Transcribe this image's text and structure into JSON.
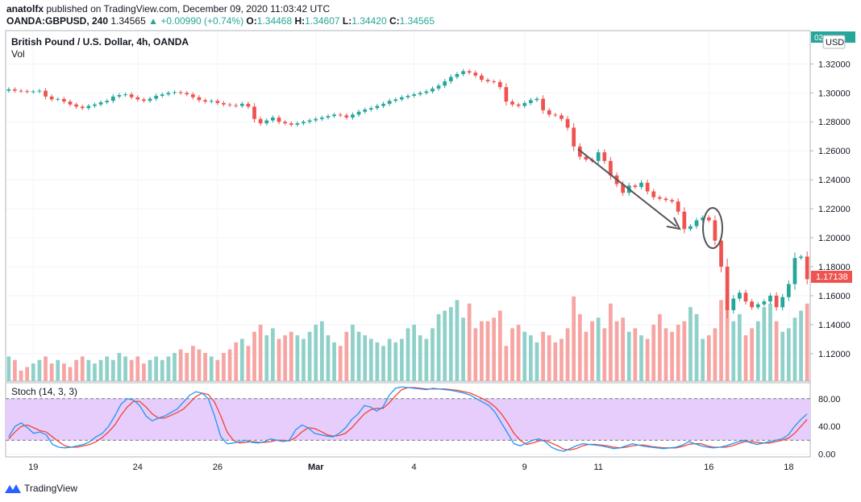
{
  "header": {
    "author": "anatolfx",
    "published_text": "published on TradingView.com, December 09, 2020 11:03:42 UTC",
    "symbol": "OANDA:GBPUSD, 240",
    "last": "1.34565",
    "change": "▲ +0.00990 (+0.74%)",
    "o_label": "O:",
    "o_value": "1.34468",
    "h_label": "H:",
    "h_value": "1.34607",
    "l_label": "L:",
    "l_value": "1.34420",
    "c_label": "C:",
    "c_value": "1.34565"
  },
  "chart": {
    "title": "British Pound / U.S. Dollar, 4h, OANDA",
    "volume_label": "Vol",
    "currency_button": "USD",
    "corner_tag": "02",
    "price_tag": "1.17138",
    "oscillator_label": "Stoch (14, 3, 3)"
  },
  "footer": {
    "brand": "TradingView"
  },
  "colors": {
    "up": "#26a69a",
    "down": "#ef5350",
    "up_volume": "#8fd1c9",
    "down_volume": "#f6a5a3",
    "stoch_k": "#2196f3",
    "stoch_d": "#f44336",
    "stoch_band": "#e6cdfb"
  },
  "chart_data": [
    {
      "type": "candlestick",
      "title": "British Pound / U.S. Dollar, 4h, OANDA",
      "price_axis_ticks": [
        "1.32000",
        "1.30000",
        "1.28000",
        "1.26000",
        "1.24000",
        "1.22000",
        "1.20000",
        "1.18000",
        "1.16000",
        "1.14000",
        "1.12000"
      ],
      "ylim": [
        1.101,
        1.343
      ],
      "x_ticks": [
        "19",
        "24",
        "26",
        "Mar",
        "4",
        "9",
        "11",
        "16",
        "18"
      ],
      "last_price": "1.17138",
      "annotations": [
        "down arrow",
        "ellipse"
      ],
      "close": [
        1.3025,
        1.3015,
        1.3012,
        1.3008,
        1.301,
        1.3015,
        1.2975,
        1.2955,
        1.2958,
        1.294,
        1.292,
        1.2905,
        1.2895,
        1.291,
        1.292,
        1.2935,
        1.2945,
        1.2975,
        1.2985,
        1.299,
        1.297,
        1.2955,
        1.2945,
        1.296,
        1.298,
        1.299,
        1.3,
        1.3005,
        1.3,
        1.299,
        1.297,
        1.295,
        1.294,
        1.2945,
        1.293,
        1.292,
        1.2915,
        1.291,
        1.2925,
        1.2905,
        1.282,
        1.279,
        1.281,
        1.283,
        1.28,
        1.279,
        1.278,
        1.279,
        1.28,
        1.281,
        1.282,
        1.283,
        1.284,
        1.285,
        1.2845,
        1.283,
        1.285,
        1.287,
        1.2885,
        1.2895,
        1.291,
        1.2925,
        1.2945,
        1.2955,
        1.297,
        1.298,
        1.299,
        1.3,
        1.301,
        1.303,
        1.305,
        1.308,
        1.311,
        1.313,
        1.315,
        1.314,
        1.312,
        1.309,
        1.308,
        1.3075,
        1.304,
        1.294,
        1.292,
        1.291,
        1.293,
        1.295,
        1.296,
        1.288,
        1.285,
        1.2845,
        1.282,
        1.276,
        1.263,
        1.256,
        1.254,
        1.253,
        1.259,
        1.253,
        1.243,
        1.237,
        1.231,
        1.236,
        1.235,
        1.238,
        1.232,
        1.228,
        1.227,
        1.226,
        1.225,
        1.218,
        1.206,
        1.208,
        1.212,
        1.214,
        1.212,
        1.198,
        1.18,
        1.15,
        1.158,
        1.162,
        1.156,
        1.152,
        1.154,
        1.156,
        1.16,
        1.152,
        1.159,
        1.168,
        1.186,
        1.187,
        1.1714
      ],
      "volume_relative": [
        0.35,
        0.3,
        0.15,
        0.2,
        0.25,
        0.3,
        0.35,
        0.25,
        0.3,
        0.25,
        0.2,
        0.3,
        0.35,
        0.3,
        0.25,
        0.3,
        0.35,
        0.3,
        0.4,
        0.35,
        0.3,
        0.35,
        0.25,
        0.3,
        0.35,
        0.3,
        0.35,
        0.4,
        0.45,
        0.4,
        0.5,
        0.45,
        0.4,
        0.35,
        0.3,
        0.4,
        0.45,
        0.55,
        0.6,
        0.5,
        0.7,
        0.8,
        0.65,
        0.75,
        0.6,
        0.65,
        0.7,
        0.65,
        0.6,
        0.7,
        0.8,
        0.85,
        0.65,
        0.55,
        0.5,
        0.7,
        0.8,
        0.7,
        0.65,
        0.6,
        0.55,
        0.5,
        0.6,
        0.55,
        0.6,
        0.75,
        0.8,
        0.65,
        0.6,
        0.75,
        0.95,
        1.0,
        1.05,
        1.15,
        0.9,
        1.1,
        0.75,
        0.85,
        0.85,
        0.9,
        1.0,
        0.5,
        0.75,
        0.8,
        0.7,
        0.65,
        0.55,
        0.7,
        0.65,
        0.55,
        0.6,
        0.75,
        1.2,
        0.95,
        0.7,
        0.85,
        0.9,
        0.75,
        1.1,
        0.85,
        0.9,
        0.7,
        0.75,
        0.65,
        0.6,
        0.8,
        0.95,
        0.75,
        0.7,
        0.8,
        0.85,
        1.05,
        0.95,
        0.6,
        0.65,
        0.75,
        1.15,
        1.2,
        0.85,
        0.95,
        0.65,
        0.75,
        0.85,
        1.05,
        1.1,
        0.85,
        0.7,
        0.75,
        0.9,
        1.0,
        1.1
      ]
    },
    {
      "type": "line",
      "title": "Stoch (14, 3, 3)",
      "y_axis_ticks": [
        "80.00",
        "40.00",
        "0.00"
      ],
      "ylim": [
        -4,
        103
      ],
      "band": [
        20,
        80
      ],
      "series": [
        {
          "name": "%K",
          "values": [
            25,
            40,
            45,
            38,
            30,
            32,
            28,
            14,
            10,
            9,
            10,
            12,
            14,
            18,
            25,
            30,
            40,
            55,
            72,
            80,
            78,
            70,
            55,
            48,
            52,
            55,
            60,
            65,
            75,
            85,
            90,
            88,
            80,
            55,
            25,
            15,
            16,
            18,
            20,
            17,
            16,
            18,
            22,
            20,
            18,
            20,
            35,
            42,
            38,
            30,
            28,
            26,
            25,
            30,
            38,
            50,
            58,
            70,
            68,
            62,
            68,
            85,
            95,
            97,
            96,
            95,
            94,
            93,
            95,
            94,
            93,
            92,
            90,
            88,
            85,
            80,
            75,
            70,
            60,
            45,
            30,
            15,
            12,
            16,
            20,
            22,
            18,
            10,
            6,
            4,
            8,
            12,
            15,
            14,
            13,
            12,
            10,
            8,
            9,
            12,
            15,
            13,
            11,
            10,
            9,
            8,
            9,
            10,
            13,
            18,
            15,
            12,
            10,
            9,
            10,
            12,
            15,
            18,
            20,
            16,
            14,
            16,
            18,
            20,
            22,
            28,
            40,
            50,
            58
          ]
        },
        {
          "name": "%D",
          "values": [
            22,
            32,
            40,
            42,
            38,
            34,
            32,
            25,
            18,
            12,
            10,
            10,
            12,
            14,
            18,
            24,
            32,
            42,
            56,
            68,
            76,
            76,
            68,
            58,
            52,
            52,
            56,
            60,
            65,
            74,
            83,
            88,
            86,
            75,
            55,
            32,
            20,
            16,
            17,
            18,
            17,
            17,
            18,
            20,
            20,
            19,
            24,
            32,
            38,
            37,
            33,
            28,
            26,
            27,
            30,
            38,
            48,
            58,
            64,
            66,
            66,
            74,
            84,
            93,
            96,
            96,
            95,
            94,
            94,
            94,
            94,
            93,
            92,
            90,
            88,
            84,
            80,
            75,
            68,
            58,
            45,
            30,
            20,
            14,
            16,
            19,
            20,
            16,
            12,
            7,
            6,
            8,
            12,
            14,
            14,
            13,
            12,
            10,
            9,
            10,
            12,
            13,
            13,
            11,
            10,
            9,
            9,
            9,
            11,
            14,
            15,
            15,
            12,
            10,
            10,
            10,
            12,
            15,
            18,
            18,
            17,
            16,
            16,
            18,
            20,
            23,
            30,
            40,
            50
          ]
        }
      ]
    }
  ]
}
